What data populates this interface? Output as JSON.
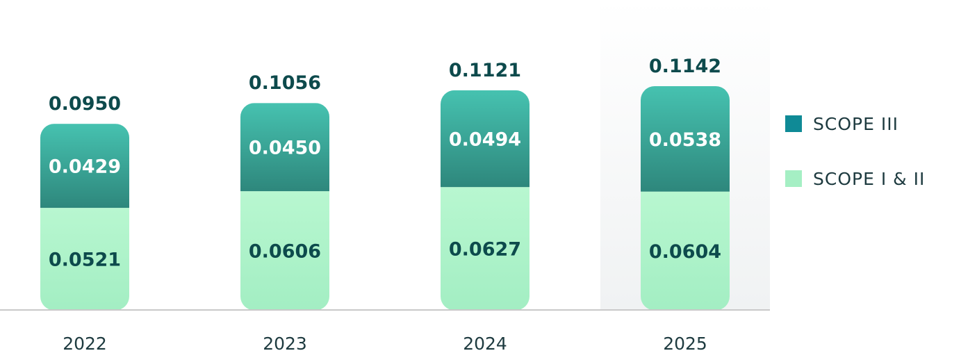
{
  "chart_data": {
    "type": "bar",
    "stacked": true,
    "categories": [
      "2022",
      "2023",
      "2024",
      "2025"
    ],
    "series": [
      {
        "name": "SCOPE I & II",
        "values": [
          0.0521,
          0.0606,
          0.0627,
          0.0604
        ],
        "labels": [
          "0.0521",
          "0.0606",
          "0.0627",
          "0.0604"
        ]
      },
      {
        "name": "SCOPE III",
        "values": [
          0.0429,
          0.045,
          0.0494,
          0.0538
        ],
        "labels": [
          "0.0429",
          "0.0450",
          "0.0494",
          "0.0538"
        ]
      }
    ],
    "totals": [
      0.095,
      0.1056,
      0.1121,
      0.1142
    ],
    "total_labels": [
      "0.0950",
      "0.1056",
      "0.1121",
      "0.1142"
    ],
    "highlighted_category": "2025",
    "legend_position": "right",
    "grid": false
  },
  "legend": {
    "items": [
      {
        "label": "SCOPE III",
        "color": "#0f8a96"
      },
      {
        "label": "SCOPE I & II",
        "color": "#a5efc4"
      }
    ]
  },
  "colors": {
    "scope3_top": "#46c2b0",
    "scope3_bottom": "#2e877c",
    "scope12_top": "#b8f7d0",
    "scope12_bottom": "#a3eec3",
    "total_text": "#0d4a4c",
    "inner_light_text": "#ffffff",
    "inner_dark_text": "#0d4a4c",
    "baseline": "#c9c9c9",
    "highlight_bg": "#f0f2f3"
  }
}
